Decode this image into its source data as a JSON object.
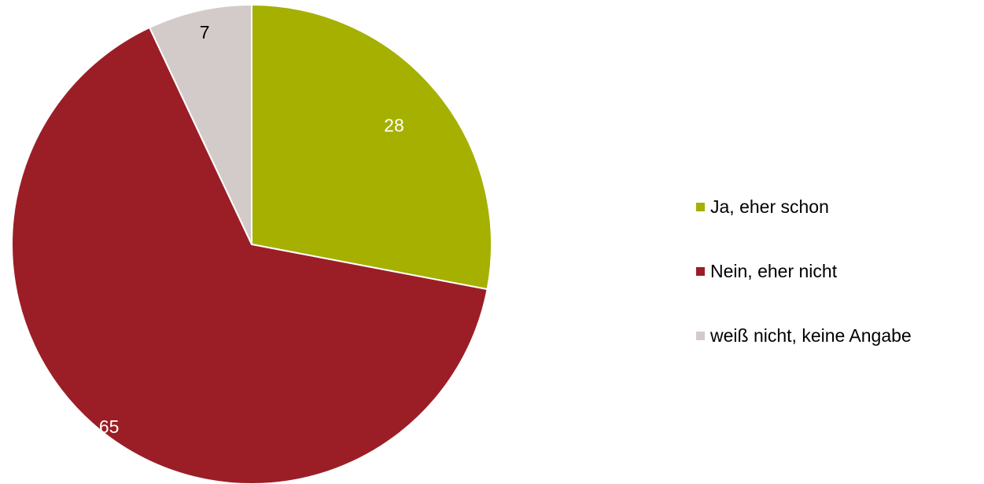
{
  "chart_data": {
    "type": "pie",
    "start_angle_deg": 0,
    "direction": "clockwise",
    "slices": [
      {
        "label": "Ja, eher schon",
        "value": 28,
        "color": "#a5b000",
        "label_color": "#ffffff"
      },
      {
        "label": "Nein, eher nicht",
        "value": 65,
        "color": "#9b1e26",
        "label_color": "#ffffff"
      },
      {
        "label": "weiß nicht, keine Angabe",
        "value": 7,
        "color": "#d3cbca",
        "label_color": "#000000"
      }
    ],
    "legend_position": "right",
    "data_labels": "value"
  }
}
